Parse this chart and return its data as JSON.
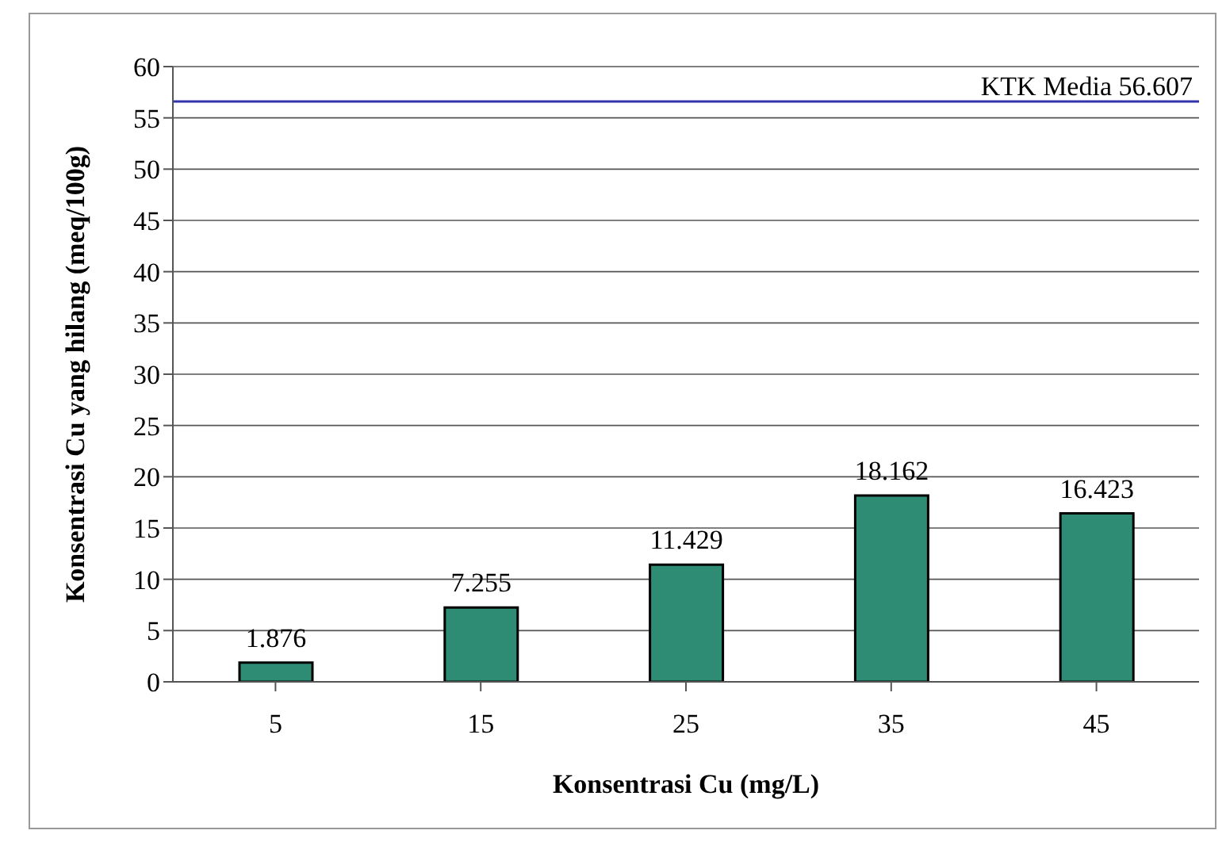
{
  "chart_data": {
    "type": "bar",
    "xlabel": "Konsentrasi Cu (mg/L)",
    "ylabel": "Konsentrasi Cu yang hilang (meq/100g)",
    "categories": [
      "5",
      "15",
      "25",
      "35",
      "45"
    ],
    "values": [
      1.876,
      7.255,
      11.429,
      18.162,
      16.423
    ],
    "color": "#2e8b74",
    "ylim": [
      0,
      60
    ],
    "yticks": [
      0,
      5,
      10,
      15,
      20,
      25,
      30,
      35,
      40,
      45,
      50,
      55,
      60
    ],
    "grid": "y",
    "data_labels": true,
    "ref_lines": [
      {
        "axis": "y",
        "value": 56.607,
        "label": "KTK Media 56.607",
        "color": "#3333aa"
      }
    ]
  }
}
